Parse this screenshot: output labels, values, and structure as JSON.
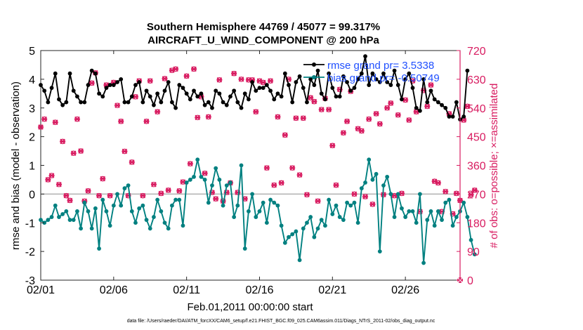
{
  "colors": {
    "rmse": "#000000",
    "bias": "#008080",
    "obs": "#d81b60",
    "legend_text": "#1f4fff",
    "zero_line": "#b0b0b0"
  },
  "chart_data": {
    "type": "line",
    "title": "Southern Hemisphere 44769 / 45077 = 99.317%",
    "subtitle": "AIRCRAFT_U_WIND_COMPONENT @ 200 hPa",
    "xlabel": "Feb.01,2011 00:00:00 start",
    "ylabel": "rmse and bias (model - observation)",
    "y2label": "# of obs: o=possible; ×=assimilated",
    "footer": "data file: /Users/raeder/DAI/ATM_forcXX/CAM6_setup/f.e21.FHIST_BGC.f09_025.CAM6assim.011/Diags_NTrS_2011-02/obs_diag_output.nc",
    "xlim": [
      0,
      28.75
    ],
    "ylim": [
      -3,
      5
    ],
    "y2lim": [
      0,
      720
    ],
    "xticks": [
      0,
      5,
      10,
      15,
      20,
      25
    ],
    "xtick_labels": [
      "02/01",
      "02/06",
      "02/11",
      "02/16",
      "02/21",
      "02/26"
    ],
    "yticks": [
      -3,
      -2,
      -1,
      0,
      1,
      2,
      3,
      4,
      5
    ],
    "ytick_labels": [
      "-3",
      "-2",
      "-1",
      "0",
      "1",
      "2",
      "3",
      "4",
      "5"
    ],
    "y2ticks": [
      0,
      90,
      180,
      270,
      360,
      450,
      540,
      630,
      720
    ],
    "y2tick_labels": [
      "0",
      "90",
      "180",
      "270",
      "360",
      "450",
      "540",
      "630",
      "720"
    ],
    "time_step_days": 0.25,
    "legend": [
      {
        "name": "rmse grand pr",
        "label": "rmse grand pr= 3.5338"
      },
      {
        "name": "bias grand pr",
        "label": "bias grand pr= -0.50749"
      }
    ],
    "series": [
      {
        "name": "rmse grand pr",
        "style": "line-marker",
        "values": [
          3.8,
          3.6,
          3.2,
          3.7,
          4.2,
          3.3,
          3.1,
          3.2,
          4.2,
          3.6,
          3.4,
          3.2,
          3.2,
          3.8,
          4.3,
          4.2,
          3.5,
          3.4,
          3.7,
          3.8,
          3.8,
          3.9,
          4.0,
          3.2,
          3.2,
          3.4,
          3.8,
          3.9,
          3.2,
          3.6,
          3.4,
          3.1,
          3.5,
          3.2,
          3.6,
          3.9,
          3.2,
          3.0,
          3.8,
          3.7,
          3.5,
          3.3,
          3.6,
          3.4,
          3.5,
          3.1,
          3.2,
          3.0,
          3.6,
          3.5,
          3.2,
          3.1,
          3.4,
          3.6,
          3.2,
          3.0,
          3.5,
          3.3,
          3.9,
          3.6,
          3.7,
          3.7,
          3.8,
          3.6,
          3.3,
          3.5,
          3.4,
          4.2,
          3.8,
          3.2,
          3.9,
          4.1,
          3.7,
          3.2,
          4.0,
          3.8,
          4.3,
          3.5,
          3.3,
          4.2,
          3.7,
          3.4,
          3.4,
          4.1,
          3.9,
          3.6,
          3.7,
          4.0,
          4.2,
          4.8,
          3.8,
          4.2,
          4.0,
          3.9,
          4.2,
          3.9,
          3.8,
          4.3,
          3.8,
          3.3,
          4.0,
          4.2,
          3.7,
          3.0,
          2.9,
          4.0,
          3.2,
          3.6,
          3.3,
          3.2,
          3.1,
          3.0,
          2.7,
          2.7,
          3.2,
          2.6,
          2.7,
          4.3
        ]
      },
      {
        "name": "bias grand pr",
        "style": "line-marker",
        "values": [
          -0.9,
          -1.0,
          -0.9,
          -0.8,
          -0.4,
          -0.8,
          -0.7,
          -0.6,
          -0.9,
          -0.9,
          -0.6,
          -1.2,
          -0.3,
          -0.6,
          -1.2,
          -0.5,
          -1.9,
          -0.2,
          -0.6,
          -1.1,
          -0.4,
          0.0,
          -0.4,
          0.2,
          0.3,
          -0.6,
          -1.0,
          -0.5,
          -0.4,
          -0.9,
          -1.2,
          -0.8,
          -0.2,
          -0.6,
          -1.0,
          -1.2,
          -0.4,
          -0.2,
          -0.2,
          -1.1,
          0.4,
          0.5,
          0.6,
          1.2,
          0.6,
          0.5,
          -0.3,
          0.3,
          0.9,
          0.5,
          -0.4,
          0.3,
          0.4,
          -0.8,
          -0.4,
          1.0,
          -1.9,
          -0.6,
          0.0,
          -0.8,
          -0.6,
          -0.3,
          -1.0,
          -0.2,
          -0.3,
          -0.4,
          -1.1,
          -1.7,
          -1.5,
          -1.4,
          -1.3,
          -2.3,
          -1.2,
          -1.0,
          -0.8,
          -1.5,
          -1.2,
          -0.9,
          -1.1,
          -0.2,
          -0.7,
          -0.4,
          -0.8,
          -0.9,
          -0.3,
          -0.4,
          -0.3,
          -1.0,
          0.2,
          0.4,
          1.2,
          0.5,
          0.7,
          -2.0,
          0.3,
          0.6,
          0.0,
          -0.8,
          0.0,
          -0.5,
          -0.8,
          -0.6,
          -0.6,
          -1.0,
          0.0,
          -2.4,
          -0.9,
          -0.6,
          -1.1,
          -0.6,
          -0.9,
          -0.3,
          -0.2,
          -1.1,
          -0.8,
          -0.6,
          -0.3,
          -0.8,
          -1.6,
          -2.1
        ]
      },
      {
        "name": "obs possible",
        "style": "circle",
        "axis": "right",
        "values": [
          480,
          505,
          315,
          328,
          495,
          300,
          435,
          265,
          250,
          398,
          505,
          405,
          248,
          280,
          618,
          650,
          265,
          318,
          612,
          265,
          620,
          548,
          498,
          404,
          265,
          370,
          575,
          625,
          265,
          498,
          625,
          300,
          528,
          272,
          632,
          282,
          658,
          662,
          280,
          308,
          640,
          365,
          662,
          510,
          575,
          335,
          512,
          275,
          255,
          628,
          248,
          275,
          305,
          648,
          275,
          630,
          255,
          628,
          628,
          528,
          625,
          620,
          352,
          625,
          298,
          512,
          305,
          455,
          630,
          352,
          508,
          330,
          508,
          268,
          572,
          560,
          248,
          535,
          570,
          535,
          422,
          298,
          598,
          462,
          498,
          592,
          270,
          475,
          468,
          262,
          505,
          238,
          522,
          490,
          268,
          540,
          555,
          265,
          518,
          272,
          565,
          502,
          625,
          528,
          215,
          595,
          545,
          612,
          310,
          305,
          215,
          278,
          522,
          208,
          272,
          250,
          502,
          545,
          268,
          282
        ]
      },
      {
        "name": "obs assimilated",
        "style": "x",
        "axis": "right",
        "values": [
          480,
          505,
          315,
          328,
          495,
          300,
          435,
          265,
          250,
          398,
          505,
          405,
          248,
          280,
          618,
          650,
          265,
          318,
          612,
          265,
          620,
          548,
          498,
          404,
          265,
          370,
          575,
          625,
          265,
          498,
          625,
          300,
          528,
          272,
          632,
          282,
          658,
          662,
          280,
          308,
          640,
          365,
          662,
          510,
          575,
          335,
          512,
          275,
          255,
          628,
          248,
          275,
          305,
          648,
          275,
          630,
          255,
          628,
          628,
          528,
          625,
          620,
          352,
          625,
          298,
          512,
          305,
          455,
          630,
          352,
          508,
          330,
          508,
          268,
          572,
          560,
          248,
          535,
          570,
          535,
          422,
          298,
          598,
          462,
          498,
          592,
          270,
          475,
          468,
          262,
          505,
          238,
          522,
          490,
          268,
          540,
          555,
          265,
          518,
          272,
          565,
          502,
          625,
          528,
          215,
          595,
          545,
          612,
          310,
          305,
          215,
          278,
          522,
          208,
          272,
          250,
          502,
          545,
          268,
          282
        ]
      },
      {
        "name": "endpoint obs",
        "style": "x",
        "axis": "right",
        "x": [
          28.75
        ],
        "values": [
          0
        ]
      }
    ]
  }
}
